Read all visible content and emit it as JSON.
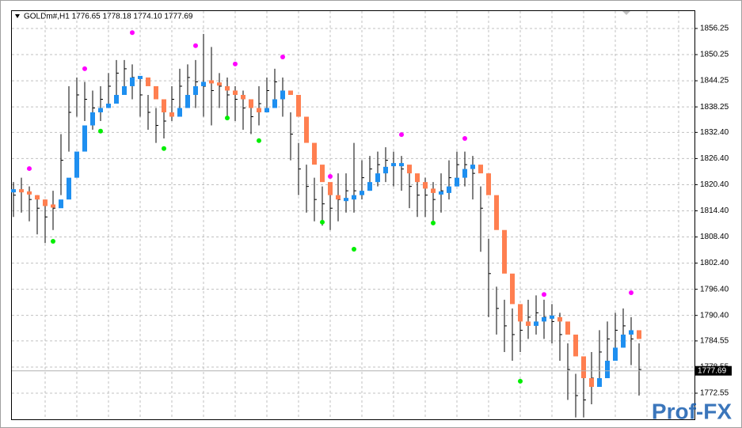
{
  "chart_data": {
    "type": "hlc",
    "title": "GOLDm#,H1  1776.65 1778.18 1774.10 1777.69",
    "watermark": "Prof-FX",
    "ylim": [
      1766.56,
      1860.24
    ],
    "yticks": [
      {
        "value": 1856.25,
        "label": "1856.25"
      },
      {
        "value": 1850.25,
        "label": "1850.25"
      },
      {
        "value": 1844.25,
        "label": "1844.25"
      },
      {
        "value": 1838.25,
        "label": "1838.25"
      },
      {
        "value": 1832.4,
        "label": "1832.40"
      },
      {
        "value": 1826.4,
        "label": "1826.40"
      },
      {
        "value": 1820.4,
        "label": "1820.40"
      },
      {
        "value": 1814.4,
        "label": "1814.40"
      },
      {
        "value": 1808.4,
        "label": "1808.40"
      },
      {
        "value": 1802.4,
        "label": "1802.40"
      },
      {
        "value": 1796.4,
        "label": "1796.40"
      },
      {
        "value": 1790.4,
        "label": "1790.40"
      },
      {
        "value": 1784.55,
        "label": "1784.55"
      },
      {
        "value": 1778.55,
        "label": "1778.55"
      },
      {
        "value": 1772.55,
        "label": "1772.55"
      }
    ],
    "grid": true,
    "current_price": {
      "value": 1777.69,
      "label": "1777.69"
    },
    "bar_color": "#000000",
    "up_color": "#1e8ff0",
    "down_color": "#ff7f50",
    "high": [
      1821,
      1822,
      1820,
      1818,
      1817,
      1819,
      1832,
      1843,
      1845,
      1844,
      1842,
      1843,
      1846,
      1849,
      1849,
      1848,
      1845,
      1841,
      1838,
      1839,
      1843,
      1847,
      1848,
      1849,
      1855,
      1852,
      1846,
      1845,
      1843,
      1842,
      1840,
      1843,
      1845,
      1847,
      1845,
      1837,
      1830,
      1825,
      1822,
      1820,
      1819,
      1823,
      1823,
      1830,
      1826,
      1827,
      1828,
      1829,
      1828,
      1827,
      1824,
      1822,
      1822,
      1821,
      1823,
      1826,
      1828,
      1828,
      1827,
      1820,
      1808,
      1797,
      1794,
      1792,
      1792,
      1794,
      1795,
      1794,
      1793,
      1791,
      1784,
      1777,
      1776,
      1782,
      1787,
      1789,
      1791,
      1792,
      1790,
      1784
    ],
    "low": [
      1813,
      1814,
      1812,
      1809,
      1807,
      1810,
      1818,
      1828,
      1836,
      1835,
      1833,
      1835,
      1838,
      1841,
      1842,
      1840,
      1836,
      1833,
      1830,
      1831,
      1835,
      1838,
      1840,
      1838,
      1836,
      1834,
      1838,
      1836,
      1835,
      1833,
      1832,
      1834,
      1837,
      1839,
      1836,
      1826,
      1818,
      1814,
      1812,
      1811,
      1810,
      1812,
      1814,
      1814,
      1817,
      1819,
      1820,
      1821,
      1820,
      1819,
      1815,
      1813,
      1813,
      1812,
      1814,
      1817,
      1820,
      1820,
      1817,
      1805,
      1790,
      1786,
      1782,
      1780,
      1782,
      1785,
      1786,
      1785,
      1784,
      1780,
      1771,
      1767,
      1767,
      1770,
      1776,
      1780,
      1782,
      1783,
      1779,
      1772
    ],
    "close": [
      1818,
      1819,
      1817,
      1815,
      1813,
      1815,
      1826,
      1837,
      1841,
      1840,
      1838,
      1840,
      1843,
      1846,
      1847,
      1845,
      1841,
      1837,
      1834,
      1835,
      1840,
      1843,
      1845,
      1844,
      1843,
      1842,
      1843,
      1841,
      1840,
      1838,
      1836,
      1839,
      1842,
      1844,
      1841,
      1832,
      1824,
      1820,
      1817,
      1816,
      1815,
      1817,
      1819,
      1819,
      1822,
      1824,
      1825,
      1826,
      1825,
      1824,
      1820,
      1818,
      1818,
      1817,
      1819,
      1822,
      1825,
      1825,
      1823,
      1815,
      1800,
      1792,
      1788,
      1786,
      1787,
      1790,
      1791,
      1790,
      1789,
      1786,
      1778,
      1772,
      1771,
      1776,
      1782,
      1785,
      1787,
      1788,
      1785,
      1778
    ],
    "signal": [
      1819,
      1818.5,
      1818,
      1817,
      1815.5,
      1815,
      1817,
      1822,
      1828,
      1834,
      1837,
      1838,
      1839,
      1841,
      1843,
      1845,
      1845,
      1843,
      1840,
      1837,
      1836,
      1838,
      1841,
      1843,
      1844,
      1843.5,
      1843,
      1842,
      1841,
      1840,
      1838,
      1837,
      1838,
      1840,
      1842,
      1841,
      1836,
      1830,
      1825,
      1821,
      1818,
      1817,
      1817,
      1818,
      1819,
      1821,
      1823,
      1824.5,
      1825,
      1825,
      1823,
      1821,
      1819.5,
      1818.5,
      1818.5,
      1820,
      1822,
      1824,
      1825,
      1823,
      1818,
      1810,
      1800,
      1793,
      1789,
      1788,
      1789,
      1790,
      1790,
      1789,
      1786,
      1781,
      1776,
      1774,
      1776,
      1780,
      1783,
      1786,
      1787,
      1785
    ],
    "peaks": {
      "color": "#ff00ff",
      "index": [
        2,
        9,
        15,
        23,
        28,
        34,
        40,
        49,
        57,
        67,
        78
      ],
      "values": [
        1824.1,
        1847.0,
        1855.3,
        1852.3,
        1848.1,
        1849.7,
        1822.3,
        1831.9,
        1831.0,
        1795.2,
        1795.6
      ]
    },
    "troughs": {
      "color": "#00ee00",
      "index": [
        5,
        11,
        19,
        27,
        31,
        39,
        43,
        53,
        64
      ],
      "values": [
        1807.4,
        1832.7,
        1828.7,
        1835.7,
        1830.5,
        1811.8,
        1805.6,
        1811.6,
        1775.3
      ]
    }
  }
}
